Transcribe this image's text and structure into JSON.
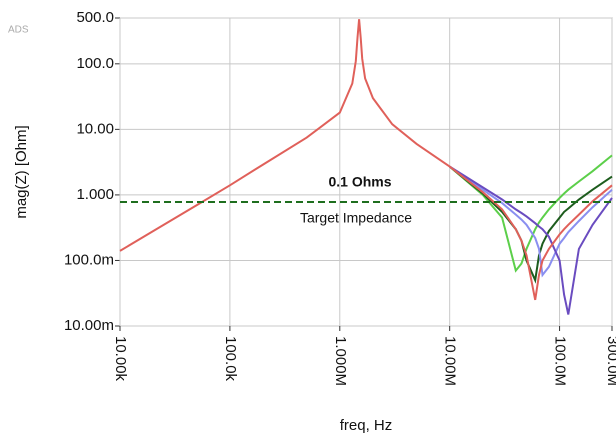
{
  "chart_data": {
    "type": "line",
    "watermark": "ADS",
    "x_label": "freq, Hz",
    "y_label": "mag(Z)  [Ohm]",
    "annotations": [
      "0.1 Ohms",
      "Target Impedance"
    ],
    "x_log": true,
    "y_log": true,
    "grid": true,
    "xlim": [
      10000,
      300000000
    ],
    "ylim": [
      0.01,
      500
    ],
    "xticks": [
      {
        "value": 10000,
        "label": "10.00k"
      },
      {
        "value": 100000,
        "label": "100.0k"
      },
      {
        "value": 1000000,
        "label": "1.000M"
      },
      {
        "value": 10000000,
        "label": "10.00M"
      },
      {
        "value": 100000000,
        "label": "100.0M"
      },
      {
        "value": 300000000,
        "label": "300.0M"
      }
    ],
    "yticks": [
      {
        "value": 500,
        "label": "500.0"
      },
      {
        "value": 100,
        "label": "100.0"
      },
      {
        "value": 10,
        "label": "10.00"
      },
      {
        "value": 1,
        "label": "1.000"
      },
      {
        "value": 0.1,
        "label": "100.0m"
      },
      {
        "value": 0.01,
        "label": "10.00m"
      }
    ],
    "reference_line": {
      "value": 0.78,
      "color": "#1e6e1e"
    },
    "x": [
      10000,
      20000,
      50000,
      100000,
      200000,
      500000,
      1000000,
      1300000,
      1400000,
      1450000,
      1500000,
      1550000,
      1600000,
      1700000,
      2000000,
      3000000,
      5000000,
      10000000,
      20000000,
      30000000,
      40000000,
      45000000,
      50000000,
      60000000,
      65000000,
      70000000,
      80000000,
      100000000,
      110000000,
      120000000,
      150000000,
      200000000,
      300000000
    ],
    "series": [
      {
        "color": "#5ccf4a",
        "values": [
          null,
          null,
          null,
          null,
          null,
          null,
          null,
          null,
          null,
          null,
          null,
          null,
          null,
          null,
          null,
          null,
          null,
          2.7,
          1.0,
          0.45,
          0.07,
          0.09,
          0.15,
          0.3,
          0.38,
          0.45,
          0.6,
          0.9,
          1.05,
          1.2,
          1.6,
          2.3,
          4
        ]
      },
      {
        "color": "#1d5c1d",
        "values": [
          null,
          null,
          null,
          null,
          null,
          null,
          null,
          null,
          null,
          null,
          null,
          null,
          null,
          null,
          null,
          null,
          null,
          2.7,
          1.05,
          0.55,
          0.3,
          0.2,
          0.1,
          0.05,
          0.12,
          0.18,
          0.28,
          0.45,
          0.55,
          0.62,
          0.85,
          1.2,
          1.9
        ]
      },
      {
        "color": "#8a8ff0",
        "values": [
          null,
          null,
          null,
          null,
          null,
          null,
          null,
          null,
          null,
          null,
          null,
          null,
          null,
          null,
          null,
          null,
          null,
          2.7,
          1.2,
          0.75,
          0.5,
          0.42,
          0.35,
          0.22,
          0.15,
          0.06,
          0.08,
          0.18,
          0.22,
          0.27,
          0.4,
          0.65,
          1.2
        ]
      },
      {
        "color": "#6a4cc0",
        "values": [
          null,
          null,
          null,
          null,
          null,
          null,
          null,
          null,
          null,
          null,
          null,
          null,
          null,
          null,
          null,
          null,
          null,
          2.7,
          1.3,
          0.85,
          0.6,
          0.53,
          0.47,
          0.37,
          0.33,
          0.3,
          0.23,
          0.1,
          0.03,
          0.015,
          0.15,
          0.35,
          0.9
        ]
      },
      {
        "color": "#e0605a",
        "values": [
          0.14,
          0.28,
          0.7,
          1.4,
          2.9,
          7.5,
          18,
          50,
          110,
          250,
          480,
          250,
          120,
          60,
          30,
          12,
          6,
          2.7,
          1.1,
          0.6,
          0.3,
          0.2,
          0.12,
          0.025,
          0.06,
          0.1,
          0.15,
          0.25,
          0.3,
          0.35,
          0.5,
          0.8,
          1.4
        ]
      }
    ]
  }
}
